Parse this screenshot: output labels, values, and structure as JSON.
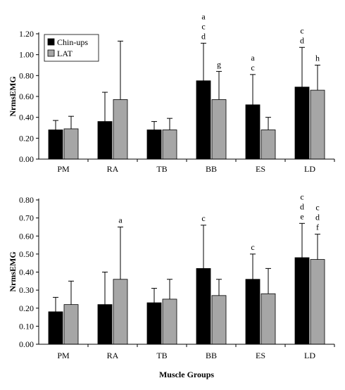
{
  "colors": {
    "chin_ups": "#000000",
    "lat": "#a6a6a6",
    "axis": "#000000"
  },
  "chart_data": [
    {
      "type": "bar",
      "categories": [
        "PM",
        "RA",
        "TB",
        "BB",
        "ES",
        "LD"
      ],
      "ylabel": "NrmsEMG",
      "xlabel": "",
      "ylim": [
        0,
        1.2
      ],
      "yticks": [
        "0.00",
        "0.20",
        "0.40",
        "0.60",
        "0.80",
        "1.00",
        "1.20"
      ],
      "grid": false,
      "legend": "top-left",
      "series": [
        {
          "name": "Chin-ups",
          "values": [
            0.28,
            0.36,
            0.28,
            0.75,
            0.52,
            0.69
          ],
          "errors": [
            0.09,
            0.28,
            0.08,
            0.36,
            0.29,
            0.38
          ],
          "annotations": [
            [],
            [],
            [],
            [
              "a",
              "c",
              "d"
            ],
            [
              "a",
              "c"
            ],
            [
              "c",
              "d"
            ]
          ]
        },
        {
          "name": "LAT",
          "values": [
            0.29,
            0.57,
            0.28,
            0.57,
            0.28,
            0.66
          ],
          "errors": [
            0.12,
            0.56,
            0.11,
            0.27,
            0.12,
            0.24
          ],
          "annotations": [
            [],
            [],
            [],
            [
              "g"
            ],
            [],
            [
              "h"
            ]
          ]
        }
      ]
    },
    {
      "type": "bar",
      "categories": [
        "PM",
        "RA",
        "TB",
        "BB",
        "ES",
        "LD"
      ],
      "ylabel": "NrmsEMG",
      "xlabel": "Muscle Groups",
      "ylim": [
        0,
        0.8
      ],
      "yticks": [
        "0.00",
        "0.10",
        "0.20",
        "0.30",
        "0.40",
        "0.50",
        "0.60",
        "0.70",
        "0.80"
      ],
      "grid": false,
      "series": [
        {
          "name": "Chin-ups",
          "values": [
            0.18,
            0.22,
            0.23,
            0.42,
            0.36,
            0.48
          ],
          "errors": [
            0.08,
            0.18,
            0.08,
            0.24,
            0.14,
            0.19
          ],
          "annotations": [
            [],
            [],
            [],
            [
              "c"
            ],
            [
              "c"
            ],
            [
              "c",
              "d",
              "e"
            ]
          ]
        },
        {
          "name": "LAT",
          "values": [
            0.22,
            0.36,
            0.25,
            0.27,
            0.28,
            0.47
          ],
          "errors": [
            0.13,
            0.29,
            0.11,
            0.09,
            0.14,
            0.14
          ],
          "annotations": [
            [],
            [
              "a"
            ],
            [],
            [],
            [],
            [
              "c",
              "d",
              "f"
            ]
          ]
        }
      ]
    }
  ]
}
